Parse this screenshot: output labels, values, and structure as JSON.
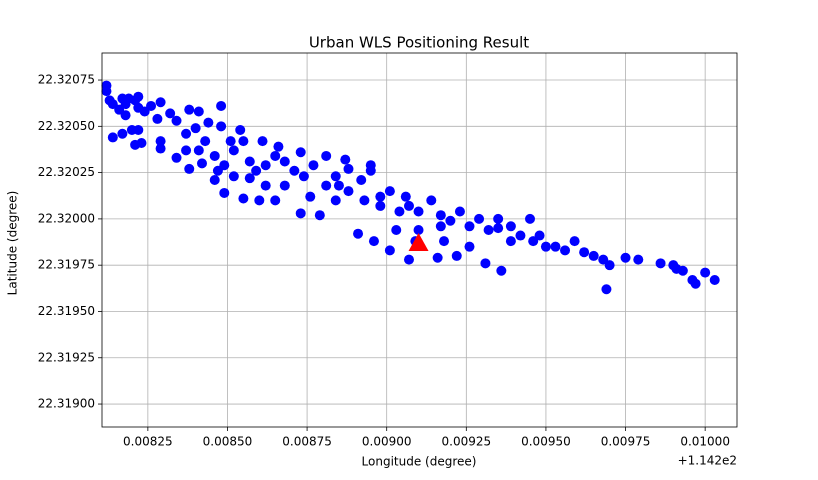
{
  "chart_data": {
    "type": "scatter",
    "title": "Urban WLS Positioning Result",
    "x_label": "Longitude (degree)",
    "y_label": "Latitude (degree)",
    "x_offset_label": "+1.142e2",
    "xlim": [
      0.008106,
      0.0101
    ],
    "ylim": [
      22.318876,
      22.320896
    ],
    "xticks": [
      0.00825,
      {
        "value": 0.0085,
        "label": "0.00850"
      },
      0.00875,
      {
        "value": 0.009,
        "label": "0.00900"
      },
      0.00925,
      {
        "value": 0.0095,
        "label": "0.00950"
      },
      0.00975,
      {
        "value": 0.01,
        "label": "0.01000"
      }
    ],
    "yticks": [
      {
        "value": 22.319,
        "label": "22.31900"
      },
      22.31925,
      {
        "value": 22.3195,
        "label": "22.31950"
      },
      22.31975,
      {
        "value": 22.32,
        "label": "22.32000"
      },
      22.32025,
      {
        "value": 22.3205,
        "label": "22.32050"
      },
      22.32075
    ],
    "grid": true,
    "series": [
      {
        "color": "#0000ff",
        "marker": "circle",
        "x": [
          0.00812,
          0.00812,
          0.00813,
          0.00814,
          0.00816,
          0.00817,
          0.00818,
          0.00819,
          0.00821,
          0.00822,
          0.00822,
          0.00824,
          0.00826,
          0.00829,
          0.00818,
          0.00814,
          0.00817,
          0.0082,
          0.00822,
          0.00821,
          0.00823,
          0.00828,
          0.00832,
          0.00834,
          0.00838,
          0.00841,
          0.00844,
          0.00848,
          0.00848,
          0.00837,
          0.0084,
          0.00843,
          0.00846,
          0.00849,
          0.00852,
          0.00855,
          0.00857,
          0.00859,
          0.00862,
          0.00865,
          0.00868,
          0.00871,
          0.00874,
          0.00877,
          0.00881,
          0.00884,
          0.00885,
          0.00888,
          0.00892,
          0.00893,
          0.00895,
          0.00898,
          0.00901,
          0.00904,
          0.00906,
          0.00907,
          0.0091,
          0.00914,
          0.00917,
          0.0092,
          0.00923,
          0.00926,
          0.00929,
          0.00932,
          0.00935,
          0.00939,
          0.00942,
          0.00945,
          0.00946,
          0.0095,
          0.00953,
          0.00956,
          0.00959,
          0.00962,
          0.00965,
          0.00968,
          0.0097,
          0.00975,
          0.00979,
          0.00986,
          0.0099,
          0.00991,
          0.00993,
          0.00996,
          0.00997,
          0.01,
          0.01003,
          0.00969,
          0.00936,
          0.00931,
          0.00922,
          0.00916,
          0.00907,
          0.00901,
          0.00896,
          0.00891,
          0.00879,
          0.00873,
          0.00865,
          0.0086,
          0.00855,
          0.00849,
          0.00846,
          0.00838,
          0.00834,
          0.00829,
          0.00888,
          0.00895,
          0.00887,
          0.00881,
          0.00873,
          0.00866,
          0.00861,
          0.00854,
          0.00851,
          0.00841,
          0.00898,
          0.0091,
          0.00918,
          0.00926,
          0.00939,
          0.00948,
          0.00935,
          0.00917,
          0.00909,
          0.00903,
          0.00884,
          0.00876,
          0.00868,
          0.00862,
          0.00857,
          0.00852,
          0.00847,
          0.00842,
          0.00837,
          0.00829
        ],
        "y": [
          22.32072,
          22.32069,
          22.32064,
          22.32062,
          22.32059,
          22.32065,
          22.32062,
          22.32065,
          22.32064,
          22.3206,
          22.32066,
          22.32058,
          22.32061,
          22.32063,
          22.32056,
          22.32044,
          22.32046,
          22.32048,
          22.32048,
          22.3204,
          22.32041,
          22.32054,
          22.32057,
          22.32053,
          22.32059,
          22.32058,
          22.32052,
          22.3205,
          22.32061,
          22.32046,
          22.32049,
          22.32042,
          22.32034,
          22.32029,
          22.32037,
          22.32042,
          22.32031,
          22.32026,
          22.32029,
          22.32034,
          22.32031,
          22.32026,
          22.32023,
          22.32029,
          22.32018,
          22.32023,
          22.32018,
          22.32015,
          22.32021,
          22.3201,
          22.32026,
          22.32012,
          22.32015,
          22.32004,
          22.32012,
          22.32007,
          22.32004,
          22.3201,
          22.32002,
          22.31999,
          22.32004,
          22.31996,
          22.32,
          22.31994,
          22.31995,
          22.31996,
          22.31991,
          22.32,
          22.31988,
          22.31985,
          22.31985,
          22.31983,
          22.31988,
          22.31982,
          22.3198,
          22.31978,
          22.31975,
          22.31979,
          22.31978,
          22.31976,
          22.31975,
          22.31973,
          22.31972,
          22.31967,
          22.31965,
          22.31971,
          22.31967,
          22.31962,
          22.31972,
          22.31976,
          22.3198,
          22.31979,
          22.31978,
          22.31983,
          22.31988,
          22.31992,
          22.32002,
          22.32003,
          22.3201,
          22.3201,
          22.32011,
          22.32014,
          22.32021,
          22.32027,
          22.32033,
          22.32038,
          22.32027,
          22.32029,
          22.32032,
          22.32034,
          22.32036,
          22.32039,
          22.32042,
          22.32048,
          22.32042,
          22.32037,
          22.32007,
          22.31994,
          22.31988,
          22.31985,
          22.31988,
          22.31991,
          22.32,
          22.31996,
          22.31988,
          22.31994,
          22.3201,
          22.32012,
          22.32018,
          22.32018,
          22.32022,
          22.32023,
          22.32026,
          22.3203,
          22.32037,
          22.32042
        ]
      },
      {
        "color": "#ff0000",
        "marker": "triangle",
        "x": [
          0.0091
        ],
        "y": [
          22.31987
        ]
      }
    ]
  }
}
